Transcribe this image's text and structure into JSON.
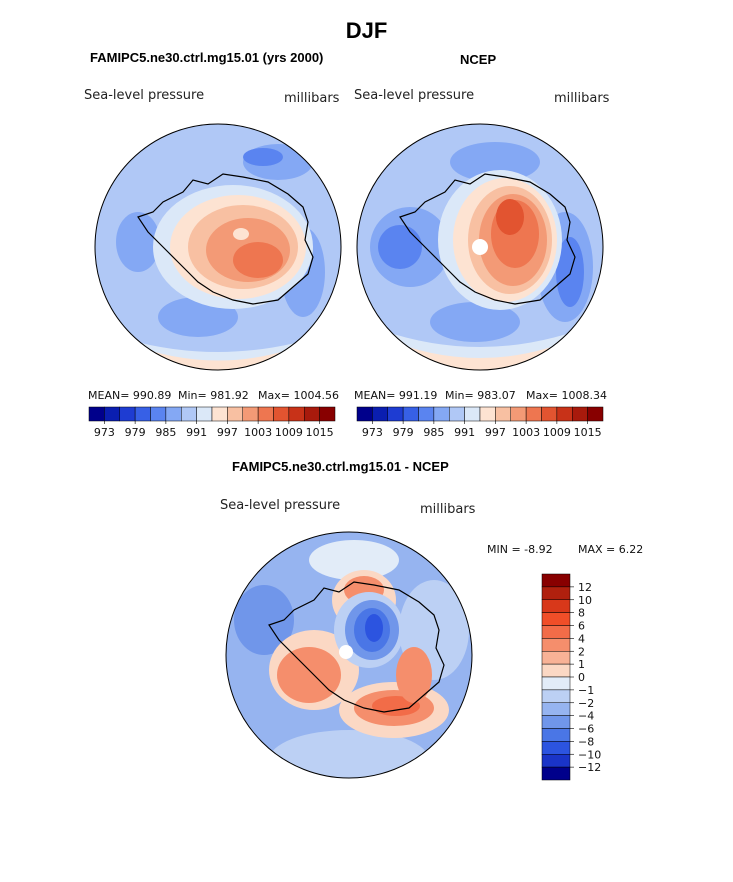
{
  "page_title": "DJF",
  "panels": [
    {
      "title": "FAMIPC5.ne30.ctrl.mg15.01 (yrs 2000)",
      "variable": "Sea-level pressure",
      "units": "millibars",
      "stats": {
        "mean": "MEAN= 990.89",
        "min": "Min= 981.92",
        "max": "Max= 1004.56"
      }
    },
    {
      "title": "NCEP",
      "variable": "Sea-level pressure",
      "units": "millibars",
      "stats": {
        "mean": "MEAN= 991.19",
        "min": "Min= 983.07",
        "max": "Max= 1008.34"
      }
    },
    {
      "title": "FAMIPC5.ne30.ctrl.mg15.01 - NCEP",
      "variable": "Sea-level pressure",
      "units": "millibars",
      "stats": {
        "min": "MIN =   -8.92",
        "max": "MAX =    6.22"
      }
    }
  ],
  "chart_data": [
    {
      "type": "heatmap",
      "projection": "south polar stereographic",
      "title": "FAMIPC5.ne30.ctrl.mg15.01 (yrs 2000)",
      "variable": "Sea-level pressure",
      "units": "millibars",
      "mean": 990.89,
      "min": 981.92,
      "max": 1004.56,
      "colorbar_levels": [
        973,
        976,
        979,
        982,
        985,
        988,
        991,
        994,
        997,
        1000,
        1003,
        1006,
        1009,
        1012,
        1015
      ],
      "colorbar_tick_labels": [
        "973",
        "979",
        "985",
        "991",
        "997",
        "1003",
        "1009",
        "1015"
      ]
    },
    {
      "type": "heatmap",
      "projection": "south polar stereographic",
      "title": "NCEP",
      "variable": "Sea-level pressure",
      "units": "millibars",
      "mean": 991.19,
      "min": 983.07,
      "max": 1008.34,
      "colorbar_levels": [
        973,
        976,
        979,
        982,
        985,
        988,
        991,
        994,
        997,
        1000,
        1003,
        1006,
        1009,
        1012,
        1015
      ],
      "colorbar_tick_labels": [
        "973",
        "979",
        "985",
        "991",
        "997",
        "1003",
        "1009",
        "1015"
      ]
    },
    {
      "type": "heatmap",
      "projection": "south polar stereographic",
      "title": "FAMIPC5.ne30.ctrl.mg15.01 - NCEP",
      "variable": "Sea-level pressure",
      "units": "millibars",
      "min": -8.92,
      "max": 6.22,
      "colorbar_levels": [
        12,
        10,
        8,
        6,
        4,
        2,
        1,
        0,
        -1,
        -2,
        -4,
        -6,
        -8,
        -10,
        -12
      ],
      "colorbar_tick_labels": [
        "12",
        "10",
        "8",
        "6",
        "4",
        "2",
        "1",
        "0",
        "−1",
        "−2",
        "−4",
        "−6",
        "−8",
        "−10",
        "−12"
      ]
    }
  ],
  "palettes": {
    "diverging_blue_red": [
      "#00008b",
      "#0a1eb0",
      "#1e3cd2",
      "#3760e6",
      "#5a84f0",
      "#84a8f4",
      "#b0c8f6",
      "#dbe8f8",
      "#fde3d2",
      "#f8c0a2",
      "#f39a76",
      "#ee7650",
      "#e25430",
      "#c83218",
      "#a81a0c",
      "#880000"
    ],
    "diff_top_to_bottom": [
      "#880000",
      "#b0200e",
      "#d8381a",
      "#f04e28",
      "#f26c48",
      "#f58e6c",
      "#f8b296",
      "#fbd8c4",
      "#e2ecf8",
      "#bcd0f4",
      "#96b4f0",
      "#7096ea",
      "#4a76e6",
      "#2c54e0",
      "#1a34c8",
      "#00008b"
    ]
  }
}
